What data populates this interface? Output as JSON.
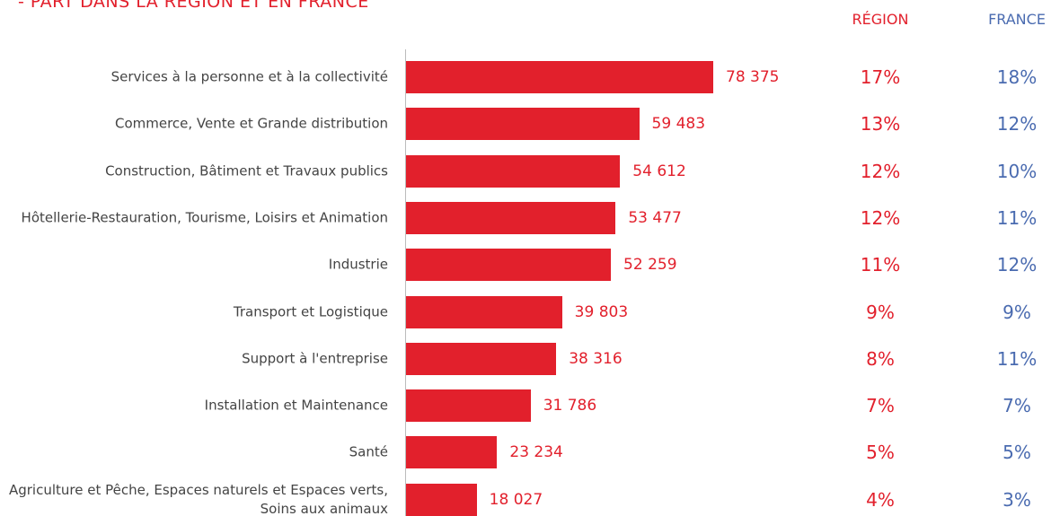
{
  "chart_data": {
    "type": "bar",
    "orientation": "horizontal",
    "title": "- PART DANS LA RÉGION ET EN FRANCE",
    "color": "#e2202c",
    "categories": [
      "Services à la personne et à la collectivité",
      "Commerce, Vente et Grande distribution",
      "Construction, Bâtiment et Travaux publics",
      "Hôtellerie-Restauration, Tourisme, Loisirs et Animation",
      "Industrie",
      "Transport et Logistique",
      "Support à l'entreprise",
      "Installation et Maintenance",
      "Santé",
      "Agriculture et Pêche, Espaces naturels et Espaces verts, Soins aux animaux"
    ],
    "values": [
      78375,
      59483,
      54612,
      53477,
      52259,
      39803,
      38316,
      31786,
      23234,
      18027
    ],
    "value_labels": [
      "78 375",
      "59 483",
      "54 612",
      "53 477",
      "52 259",
      "39 803",
      "38 316",
      "31 786",
      "23 234",
      "18 027"
    ],
    "columns": [
      {
        "name": "RÉGION",
        "color": "#e2202c",
        "values": [
          17,
          13,
          12,
          12,
          11,
          9,
          8,
          7,
          5,
          4
        ],
        "value_labels": [
          "17%",
          "13%",
          "12%",
          "12%",
          "11%",
          "9%",
          "8%",
          "7%",
          "5%",
          "4%"
        ]
      },
      {
        "name": "FRANCE",
        "color": "#4a6bb0",
        "values": [
          18,
          12,
          10,
          11,
          12,
          9,
          11,
          7,
          5,
          3
        ],
        "value_labels": [
          "18%",
          "12%",
          "10%",
          "11%",
          "12%",
          "9%",
          "11%",
          "7%",
          "5%",
          "3%"
        ]
      }
    ]
  }
}
